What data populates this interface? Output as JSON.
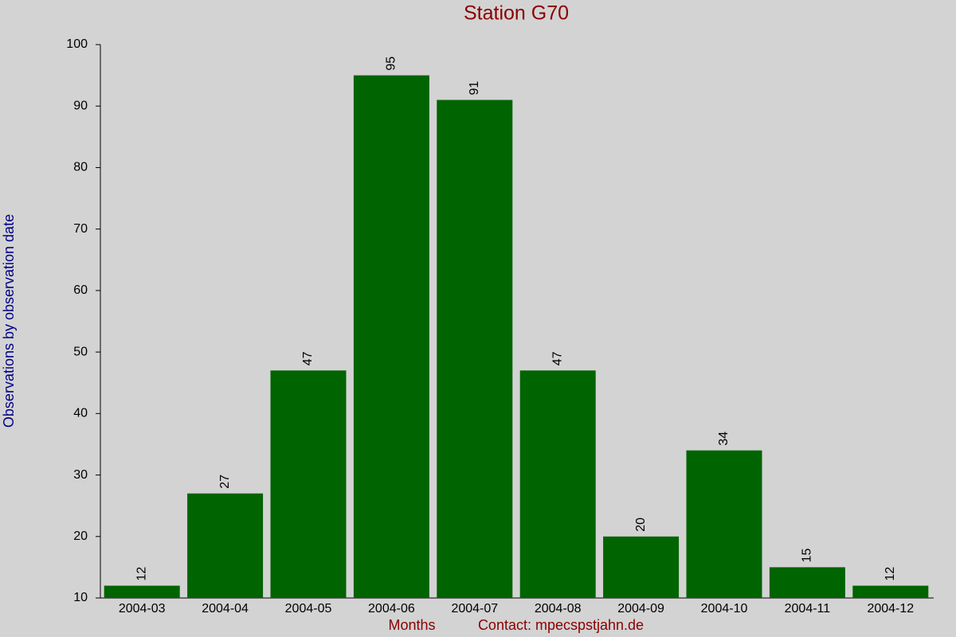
{
  "chart_data": {
    "type": "bar",
    "title": "Station G70",
    "x_label": "Months",
    "footer": "Contact: mpecspstjahn.de",
    "y_label": "Observations by observation date",
    "categories": [
      "2004-03",
      "2004-04",
      "2004-05",
      "2004-06",
      "2004-07",
      "2004-08",
      "2004-09",
      "2004-10",
      "2004-11",
      "2004-12"
    ],
    "values": [
      12,
      27,
      47,
      95,
      91,
      47,
      20,
      34,
      15,
      12
    ],
    "color": "#006400",
    "ylim": [
      10,
      100
    ],
    "yticks": [
      10,
      20,
      30,
      40,
      50,
      60,
      70,
      80,
      90,
      100
    ],
    "grid": false
  }
}
